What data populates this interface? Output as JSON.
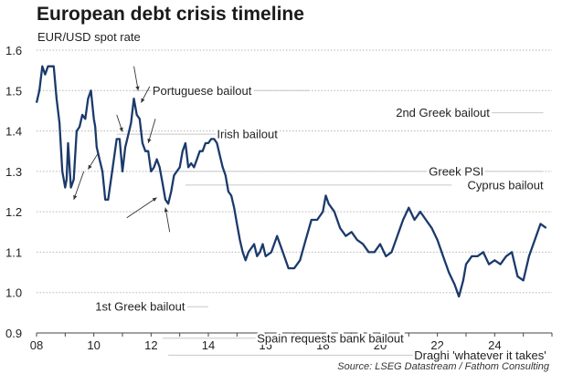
{
  "chart_data": {
    "type": "line",
    "title": "European debt crisis timeline",
    "subtitle": "EUR/USD spot rate",
    "source": "Source: LSEG Datastream / Fathom Consulting",
    "xlim": [
      2008,
      2026
    ],
    "ylim": [
      0.9,
      1.6
    ],
    "x_ticks": [
      {
        "value": 2008,
        "label": "08"
      },
      {
        "value": 2010,
        "label": "10"
      },
      {
        "value": 2012,
        "label": "12"
      },
      {
        "value": 2014,
        "label": "14"
      },
      {
        "value": 2016,
        "label": "16"
      },
      {
        "value": 2018,
        "label": "18"
      },
      {
        "value": 2020,
        "label": "20"
      },
      {
        "value": 2022,
        "label": "22"
      },
      {
        "value": 2024,
        "label": "24"
      }
    ],
    "y_ticks": [
      {
        "value": 0.9,
        "label": "0.9"
      },
      {
        "value": 1.0,
        "label": "1.0"
      },
      {
        "value": 1.1,
        "label": "1.1"
      },
      {
        "value": 1.2,
        "label": "1.2"
      },
      {
        "value": 1.3,
        "label": "1.3"
      },
      {
        "value": 1.4,
        "label": "1.4"
      },
      {
        "value": 1.5,
        "label": "1.5"
      },
      {
        "value": 1.6,
        "label": "1.6"
      }
    ],
    "grid": "horizontal dotted",
    "line_color": "#1b3a6b",
    "series": [
      {
        "x": [
          2008.0,
          2008.1,
          2008.2,
          2008.3,
          2008.4,
          2008.5,
          2008.6,
          2008.7,
          2008.8,
          2008.9,
          2009.0,
          2009.05,
          2009.1,
          2009.2,
          2009.3,
          2009.4,
          2009.5,
          2009.6,
          2009.7,
          2009.8,
          2009.9,
          2010.0,
          2010.05,
          2010.1,
          2010.2,
          2010.3,
          2010.4,
          2010.5,
          2010.6,
          2010.7,
          2010.8,
          2010.9,
          2011.0,
          2011.1,
          2011.2,
          2011.3,
          2011.4,
          2011.5,
          2011.6,
          2011.7,
          2011.8,
          2011.9,
          2012.0,
          2012.1,
          2012.2,
          2012.3,
          2012.4,
          2012.5,
          2012.6,
          2012.7,
          2012.8,
          2012.9,
          2013.0,
          2013.1,
          2013.2,
          2013.3,
          2013.4,
          2013.5,
          2013.6,
          2013.7,
          2013.8,
          2013.9,
          2014.0,
          2014.1,
          2014.2,
          2014.3,
          2014.4,
          2014.5,
          2014.6,
          2014.7,
          2014.8,
          2014.9,
          2015.0,
          2015.1,
          2015.2,
          2015.3,
          2015.4,
          2015.5,
          2015.6,
          2015.7,
          2015.8,
          2015.9,
          2016.0,
          2016.2,
          2016.4,
          2016.6,
          2016.8,
          2017.0,
          2017.2,
          2017.4,
          2017.6,
          2017.8,
          2018.0,
          2018.1,
          2018.2,
          2018.4,
          2018.6,
          2018.8,
          2019.0,
          2019.2,
          2019.4,
          2019.6,
          2019.8,
          2020.0,
          2020.2,
          2020.4,
          2020.6,
          2020.8,
          2021.0,
          2021.2,
          2021.4,
          2021.6,
          2021.8,
          2022.0,
          2022.2,
          2022.4,
          2022.6,
          2022.75,
          2022.9,
          2023.0,
          2023.2,
          2023.4,
          2023.6,
          2023.8,
          2024.0,
          2024.2,
          2024.4,
          2024.6,
          2024.8,
          2025.0,
          2025.2,
          2025.4,
          2025.6,
          2025.8
        ],
        "y": [
          1.47,
          1.5,
          1.56,
          1.54,
          1.56,
          1.56,
          1.56,
          1.48,
          1.42,
          1.3,
          1.26,
          1.28,
          1.37,
          1.26,
          1.28,
          1.4,
          1.41,
          1.44,
          1.43,
          1.48,
          1.5,
          1.43,
          1.41,
          1.36,
          1.33,
          1.3,
          1.23,
          1.23,
          1.28,
          1.33,
          1.38,
          1.38,
          1.3,
          1.36,
          1.39,
          1.42,
          1.48,
          1.44,
          1.43,
          1.37,
          1.35,
          1.35,
          1.3,
          1.31,
          1.33,
          1.31,
          1.27,
          1.23,
          1.22,
          1.25,
          1.29,
          1.3,
          1.31,
          1.35,
          1.37,
          1.31,
          1.32,
          1.31,
          1.33,
          1.35,
          1.35,
          1.37,
          1.37,
          1.38,
          1.38,
          1.37,
          1.34,
          1.31,
          1.29,
          1.25,
          1.24,
          1.21,
          1.17,
          1.13,
          1.1,
          1.08,
          1.1,
          1.11,
          1.12,
          1.09,
          1.1,
          1.12,
          1.09,
          1.1,
          1.14,
          1.1,
          1.06,
          1.06,
          1.08,
          1.13,
          1.18,
          1.18,
          1.2,
          1.24,
          1.22,
          1.2,
          1.16,
          1.14,
          1.15,
          1.13,
          1.12,
          1.1,
          1.1,
          1.12,
          1.09,
          1.1,
          1.14,
          1.18,
          1.21,
          1.18,
          1.2,
          1.18,
          1.16,
          1.13,
          1.09,
          1.05,
          1.02,
          0.99,
          1.03,
          1.07,
          1.09,
          1.09,
          1.1,
          1.07,
          1.08,
          1.07,
          1.09,
          1.1,
          1.04,
          1.03,
          1.09,
          1.13,
          1.17,
          1.16
        ]
      }
    ],
    "annotations": [
      {
        "text": "Portuguese bailout",
        "x": 2012.05,
        "y": 1.5,
        "anchor": "start",
        "rule_x": [
          2011.4,
          2017.5
        ]
      },
      {
        "text": "2nd Greek bailout",
        "x": 2020.55,
        "y": 1.445,
        "anchor": "start",
        "rule_x": [
          2020.55,
          2025.7
        ]
      },
      {
        "text": "Irish bailout",
        "x": 2014.3,
        "y": 1.392,
        "anchor": "start",
        "rule_x": [
          2010.8,
          2014.3
        ]
      },
      {
        "text": "Greek PSI",
        "x": 2021.7,
        "y": 1.3,
        "anchor": "start",
        "rule_x": [
          2012.1,
          2025.7
        ]
      },
      {
        "text": "Cyprus bailout",
        "x": 2025.7,
        "y": 1.266,
        "anchor": "end",
        "rule_x": [
          2013.2,
          2022.5
        ]
      },
      {
        "text": "1st Greek bailout",
        "x": 2010.05,
        "y": 0.965,
        "anchor": "start",
        "rule_x": [
          2010.3,
          2014.0
        ]
      },
      {
        "text": "Spain requests bank bailout",
        "x": 2015.7,
        "y": 0.887,
        "anchor": "start",
        "rule_x": [
          2012.4,
          2018.5
        ]
      },
      {
        "text": "Draghi 'whatever it takes'",
        "x": 2025.8,
        "y": 0.845,
        "anchor": "end",
        "rule_x": [
          2012.6,
          2021.7
        ]
      }
    ],
    "arrows": [
      {
        "from": [
          2010.8,
          1.44
        ],
        "to": [
          2011.0,
          1.398
        ]
      },
      {
        "from": [
          2011.4,
          1.56
        ],
        "to": [
          2011.55,
          1.5
        ]
      },
      {
        "from": [
          2011.95,
          1.51
        ],
        "to": [
          2011.65,
          1.47
        ]
      },
      {
        "from": [
          2012.15,
          1.43
        ],
        "to": [
          2011.9,
          1.37
        ]
      },
      {
        "from": [
          2010.15,
          1.345
        ],
        "to": [
          2009.8,
          1.305
        ]
      },
      {
        "from": [
          2009.65,
          1.3
        ],
        "to": [
          2009.3,
          1.23
        ]
      },
      {
        "from": [
          2011.15,
          1.185
        ],
        "to": [
          2012.2,
          1.235
        ]
      },
      {
        "from": [
          2012.65,
          1.15
        ],
        "to": [
          2012.5,
          1.21
        ]
      }
    ]
  }
}
